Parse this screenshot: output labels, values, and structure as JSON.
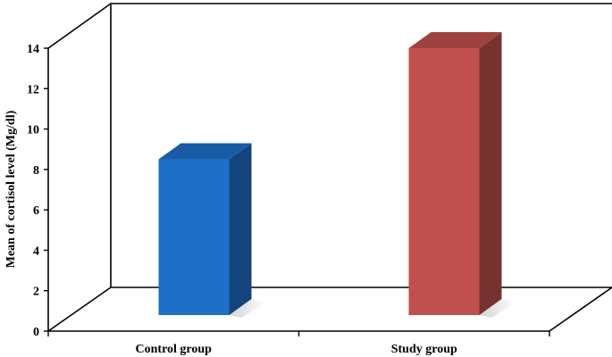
{
  "chart_data": {
    "type": "bar",
    "categories": [
      "Control group",
      "Study group"
    ],
    "values": [
      8.5,
      14
    ],
    "series_colors": [
      "#1e6fc8",
      "#c0504d"
    ],
    "ylabel": "Mean of cortisol level (Mg/dl)",
    "ylim": [
      0,
      14
    ],
    "yticks": [
      0,
      2,
      4,
      6,
      8,
      10,
      12,
      14
    ],
    "grid": false,
    "projection": "3d"
  }
}
